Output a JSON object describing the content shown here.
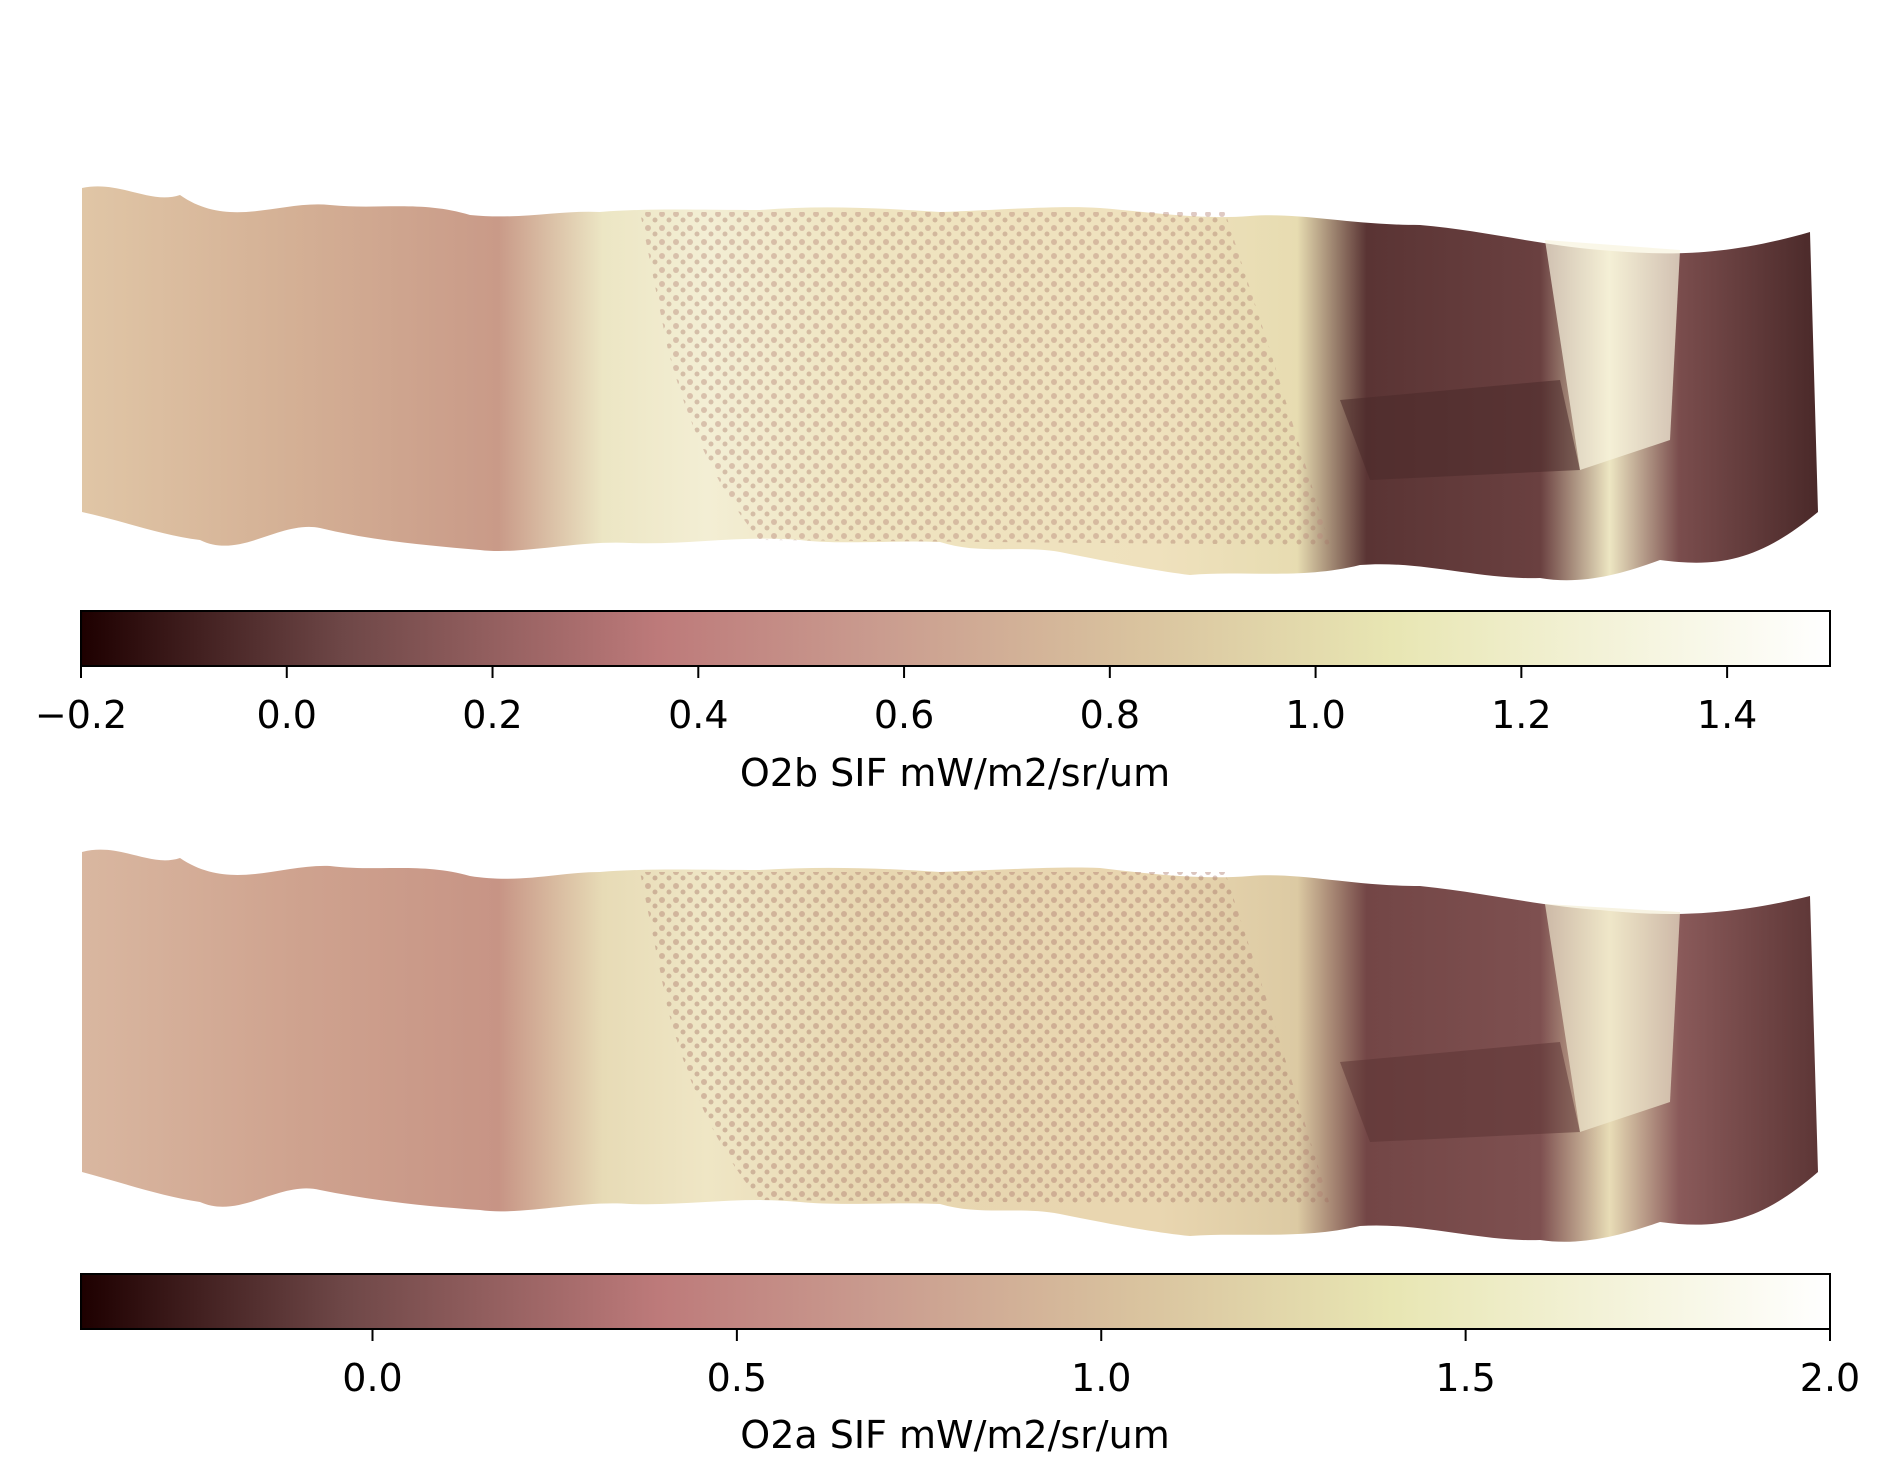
{
  "chart_data": [
    {
      "type": "heatmap",
      "colormap": "pink",
      "colorbar": {
        "label": "O2b SIF mW/m2/sr/um",
        "vmin": -0.2,
        "vmax": 1.5,
        "ticks": [
          -0.2,
          0.0,
          0.2,
          0.4,
          0.6,
          0.8,
          1.0,
          1.2,
          1.4
        ],
        "tick_labels": [
          "−0.2",
          "0.0",
          "0.2",
          "0.4",
          "0.6",
          "0.8",
          "1.0",
          "1.2",
          "1.4"
        ]
      }
    },
    {
      "type": "heatmap",
      "colormap": "pink",
      "colorbar": {
        "label": "O2a SIF mW/m2/sr/um",
        "vmin": -0.4,
        "vmax": 2.0,
        "ticks": [
          0.0,
          0.5,
          1.0,
          1.5,
          2.0
        ],
        "tick_labels": [
          "0.0",
          "0.5",
          "1.0",
          "1.5",
          "2.0"
        ]
      }
    }
  ],
  "colors": {
    "cmap_stops": [
      "#1e0000",
      "#6e4747",
      "#a86969",
      "#c08c84",
      "#d2b69a",
      "#e6e5b0",
      "#ffffff"
    ]
  }
}
